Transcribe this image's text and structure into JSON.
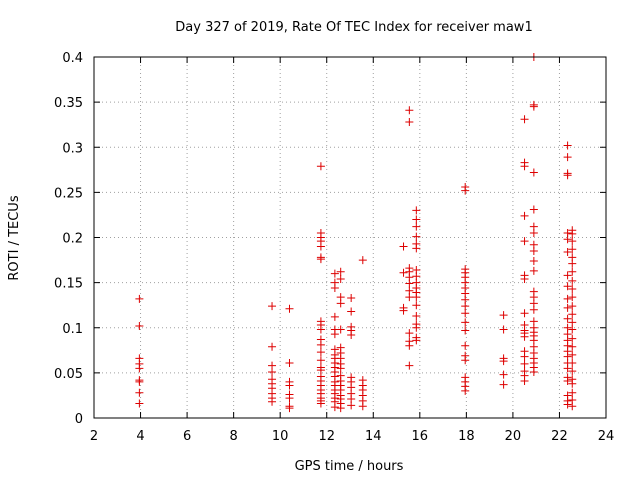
{
  "chart_data": {
    "type": "scatter",
    "title": "Day 327 of 2019, Rate Of TEC Index for receiver maw1",
    "xlabel": "GPS time / hours",
    "ylabel": "ROTI / TECUs",
    "xlim": [
      2,
      24
    ],
    "ylim": [
      0,
      0.4
    ],
    "grid": true,
    "marker": "+",
    "marker_color": "#dd0000",
    "x_ticks": [
      2,
      4,
      6,
      8,
      10,
      12,
      14,
      16,
      18,
      20,
      22,
      24
    ],
    "x_tick_labels": [
      "2",
      "4",
      "6",
      "8",
      "10",
      "12",
      "14",
      "16",
      "18",
      "20",
      "22",
      "24"
    ],
    "y_ticks": [
      0,
      0.05,
      0.1,
      0.15,
      0.2,
      0.25,
      0.3,
      0.35,
      0.4
    ],
    "y_tick_labels": [
      "0",
      "0.05",
      "0.1",
      "0.15",
      "0.2",
      "0.25",
      "0.3",
      "0.35",
      "0.4"
    ],
    "series": [
      {
        "name": "maw1",
        "points": [
          [
            3.95,
            0.132
          ],
          [
            3.95,
            0.102
          ],
          [
            3.95,
            0.066
          ],
          [
            3.95,
            0.06
          ],
          [
            3.95,
            0.055
          ],
          [
            3.95,
            0.042
          ],
          [
            3.95,
            0.04
          ],
          [
            3.95,
            0.028
          ],
          [
            3.95,
            0.016
          ],
          [
            9.65,
            0.124
          ],
          [
            9.65,
            0.079
          ],
          [
            9.65,
            0.058
          ],
          [
            9.65,
            0.051
          ],
          [
            9.65,
            0.043
          ],
          [
            9.65,
            0.038
          ],
          [
            9.65,
            0.033
          ],
          [
            9.65,
            0.027
          ],
          [
            9.65,
            0.022
          ],
          [
            9.65,
            0.018
          ],
          [
            10.4,
            0.121
          ],
          [
            10.4,
            0.061
          ],
          [
            10.4,
            0.04
          ],
          [
            10.4,
            0.036
          ],
          [
            10.4,
            0.026
          ],
          [
            10.4,
            0.022
          ],
          [
            10.4,
            0.013
          ],
          [
            10.4,
            0.011
          ],
          [
            11.75,
            0.279
          ],
          [
            11.75,
            0.205
          ],
          [
            11.75,
            0.2
          ],
          [
            11.75,
            0.196
          ],
          [
            11.75,
            0.19
          ],
          [
            11.75,
            0.178
          ],
          [
            11.75,
            0.176
          ],
          [
            11.75,
            0.107
          ],
          [
            11.75,
            0.103
          ],
          [
            11.75,
            0.098
          ],
          [
            11.75,
            0.087
          ],
          [
            11.75,
            0.081
          ],
          [
            11.75,
            0.073
          ],
          [
            11.75,
            0.064
          ],
          [
            11.75,
            0.056
          ],
          [
            11.75,
            0.053
          ],
          [
            11.75,
            0.046
          ],
          [
            11.75,
            0.041
          ],
          [
            11.75,
            0.036
          ],
          [
            11.75,
            0.031
          ],
          [
            11.75,
            0.027
          ],
          [
            11.75,
            0.022
          ],
          [
            11.75,
            0.019
          ],
          [
            11.75,
            0.016
          ],
          [
            12.35,
            0.16
          ],
          [
            12.35,
            0.15
          ],
          [
            12.35,
            0.144
          ],
          [
            12.35,
            0.112
          ],
          [
            12.35,
            0.098
          ],
          [
            12.35,
            0.093
          ],
          [
            12.35,
            0.076
          ],
          [
            12.35,
            0.07
          ],
          [
            12.35,
            0.066
          ],
          [
            12.35,
            0.061
          ],
          [
            12.35,
            0.056
          ],
          [
            12.35,
            0.051
          ],
          [
            12.35,
            0.046
          ],
          [
            12.35,
            0.04
          ],
          [
            12.35,
            0.036
          ],
          [
            12.35,
            0.031
          ],
          [
            12.35,
            0.027
          ],
          [
            12.35,
            0.022
          ],
          [
            12.35,
            0.018
          ],
          [
            12.35,
            0.012
          ],
          [
            12.6,
            0.162
          ],
          [
            12.6,
            0.154
          ],
          [
            12.6,
            0.134
          ],
          [
            12.6,
            0.127
          ],
          [
            12.6,
            0.098
          ],
          [
            12.6,
            0.078
          ],
          [
            12.6,
            0.072
          ],
          [
            12.6,
            0.066
          ],
          [
            12.6,
            0.06
          ],
          [
            12.6,
            0.055
          ],
          [
            12.6,
            0.047
          ],
          [
            12.6,
            0.041
          ],
          [
            12.6,
            0.036
          ],
          [
            12.6,
            0.031
          ],
          [
            12.6,
            0.025
          ],
          [
            12.6,
            0.021
          ],
          [
            12.6,
            0.016
          ],
          [
            12.6,
            0.011
          ],
          [
            13.05,
            0.133
          ],
          [
            13.05,
            0.118
          ],
          [
            13.05,
            0.101
          ],
          [
            13.05,
            0.097
          ],
          [
            13.05,
            0.092
          ],
          [
            13.05,
            0.045
          ],
          [
            13.05,
            0.04
          ],
          [
            13.05,
            0.034
          ],
          [
            13.05,
            0.027
          ],
          [
            13.05,
            0.021
          ],
          [
            13.05,
            0.014
          ],
          [
            13.55,
            0.175
          ],
          [
            13.55,
            0.042
          ],
          [
            13.55,
            0.036
          ],
          [
            13.55,
            0.031
          ],
          [
            13.55,
            0.025
          ],
          [
            13.55,
            0.019
          ],
          [
            13.55,
            0.013
          ],
          [
            15.3,
            0.19
          ],
          [
            15.3,
            0.161
          ],
          [
            15.3,
            0.122
          ],
          [
            15.3,
            0.119
          ],
          [
            15.55,
            0.341
          ],
          [
            15.55,
            0.328
          ],
          [
            15.55,
            0.166
          ],
          [
            15.55,
            0.162
          ],
          [
            15.55,
            0.156
          ],
          [
            15.55,
            0.149
          ],
          [
            15.55,
            0.141
          ],
          [
            15.55,
            0.134
          ],
          [
            15.55,
            0.094
          ],
          [
            15.55,
            0.085
          ],
          [
            15.55,
            0.08
          ],
          [
            15.55,
            0.058
          ],
          [
            15.85,
            0.23
          ],
          [
            15.85,
            0.22
          ],
          [
            15.85,
            0.212
          ],
          [
            15.85,
            0.201
          ],
          [
            15.85,
            0.193
          ],
          [
            15.85,
            0.188
          ],
          [
            15.85,
            0.164
          ],
          [
            15.85,
            0.157
          ],
          [
            15.85,
            0.15
          ],
          [
            15.85,
            0.144
          ],
          [
            15.85,
            0.139
          ],
          [
            15.85,
            0.134
          ],
          [
            15.85,
            0.125
          ],
          [
            15.85,
            0.113
          ],
          [
            15.85,
            0.104
          ],
          [
            15.85,
            0.1
          ],
          [
            15.85,
            0.089
          ],
          [
            15.85,
            0.086
          ],
          [
            17.95,
            0.256
          ],
          [
            17.95,
            0.252
          ],
          [
            17.95,
            0.165
          ],
          [
            17.95,
            0.161
          ],
          [
            17.95,
            0.156
          ],
          [
            17.95,
            0.15
          ],
          [
            17.95,
            0.144
          ],
          [
            17.95,
            0.138
          ],
          [
            17.95,
            0.131
          ],
          [
            17.95,
            0.124
          ],
          [
            17.95,
            0.116
          ],
          [
            17.95,
            0.106
          ],
          [
            17.95,
            0.097
          ],
          [
            17.95,
            0.08
          ],
          [
            17.95,
            0.069
          ],
          [
            17.95,
            0.064
          ],
          [
            17.95,
            0.045
          ],
          [
            17.95,
            0.04
          ],
          [
            17.95,
            0.035
          ],
          [
            17.95,
            0.03
          ],
          [
            19.6,
            0.114
          ],
          [
            19.6,
            0.098
          ],
          [
            19.6,
            0.066
          ],
          [
            19.6,
            0.063
          ],
          [
            19.6,
            0.048
          ],
          [
            19.6,
            0.037
          ],
          [
            20.5,
            0.331
          ],
          [
            20.5,
            0.283
          ],
          [
            20.5,
            0.279
          ],
          [
            20.5,
            0.224
          ],
          [
            20.5,
            0.196
          ],
          [
            20.5,
            0.158
          ],
          [
            20.5,
            0.154
          ],
          [
            20.5,
            0.116
          ],
          [
            20.5,
            0.103
          ],
          [
            20.5,
            0.097
          ],
          [
            20.5,
            0.094
          ],
          [
            20.5,
            0.09
          ],
          [
            20.5,
            0.074
          ],
          [
            20.5,
            0.068
          ],
          [
            20.5,
            0.06
          ],
          [
            20.5,
            0.052
          ],
          [
            20.5,
            0.047
          ],
          [
            20.5,
            0.041
          ],
          [
            20.9,
            0.4
          ],
          [
            20.9,
            0.347
          ],
          [
            20.9,
            0.345
          ],
          [
            20.9,
            0.272
          ],
          [
            20.9,
            0.231
          ],
          [
            20.9,
            0.212
          ],
          [
            20.9,
            0.205
          ],
          [
            20.9,
            0.192
          ],
          [
            20.9,
            0.185
          ],
          [
            20.9,
            0.174
          ],
          [
            20.9,
            0.163
          ],
          [
            20.9,
            0.14
          ],
          [
            20.9,
            0.134
          ],
          [
            20.9,
            0.127
          ],
          [
            20.9,
            0.12
          ],
          [
            20.9,
            0.107
          ],
          [
            20.9,
            0.1
          ],
          [
            20.9,
            0.095
          ],
          [
            20.9,
            0.091
          ],
          [
            20.9,
            0.086
          ],
          [
            20.9,
            0.079
          ],
          [
            20.9,
            0.072
          ],
          [
            20.9,
            0.066
          ],
          [
            20.9,
            0.061
          ],
          [
            20.9,
            0.056
          ],
          [
            20.9,
            0.051
          ],
          [
            22.35,
            0.302
          ],
          [
            22.35,
            0.289
          ],
          [
            22.35,
            0.271
          ],
          [
            22.35,
            0.269
          ],
          [
            22.35,
            0.205
          ],
          [
            22.35,
            0.198
          ],
          [
            22.35,
            0.184
          ],
          [
            22.35,
            0.158
          ],
          [
            22.35,
            0.146
          ],
          [
            22.35,
            0.132
          ],
          [
            22.35,
            0.122
          ],
          [
            22.35,
            0.11
          ],
          [
            22.35,
            0.1
          ],
          [
            22.35,
            0.093
          ],
          [
            22.35,
            0.086
          ],
          [
            22.35,
            0.08
          ],
          [
            22.35,
            0.074
          ],
          [
            22.35,
            0.068
          ],
          [
            22.35,
            0.061
          ],
          [
            22.35,
            0.055
          ],
          [
            22.35,
            0.045
          ],
          [
            22.35,
            0.041
          ],
          [
            22.35,
            0.025
          ],
          [
            22.35,
            0.019
          ],
          [
            22.35,
            0.015
          ],
          [
            22.55,
            0.208
          ],
          [
            22.55,
            0.204
          ],
          [
            22.55,
            0.196
          ],
          [
            22.55,
            0.187
          ],
          [
            22.55,
            0.178
          ],
          [
            22.55,
            0.171
          ],
          [
            22.55,
            0.162
          ],
          [
            22.55,
            0.152
          ],
          [
            22.55,
            0.143
          ],
          [
            22.55,
            0.134
          ],
          [
            22.55,
            0.124
          ],
          [
            22.55,
            0.115
          ],
          [
            22.55,
            0.106
          ],
          [
            22.55,
            0.098
          ],
          [
            22.55,
            0.088
          ],
          [
            22.55,
            0.079
          ],
          [
            22.55,
            0.07
          ],
          [
            22.55,
            0.061
          ],
          [
            22.55,
            0.052
          ],
          [
            22.55,
            0.043
          ],
          [
            22.55,
            0.038
          ],
          [
            22.55,
            0.028
          ],
          [
            22.55,
            0.02
          ],
          [
            22.55,
            0.013
          ]
        ]
      }
    ]
  }
}
